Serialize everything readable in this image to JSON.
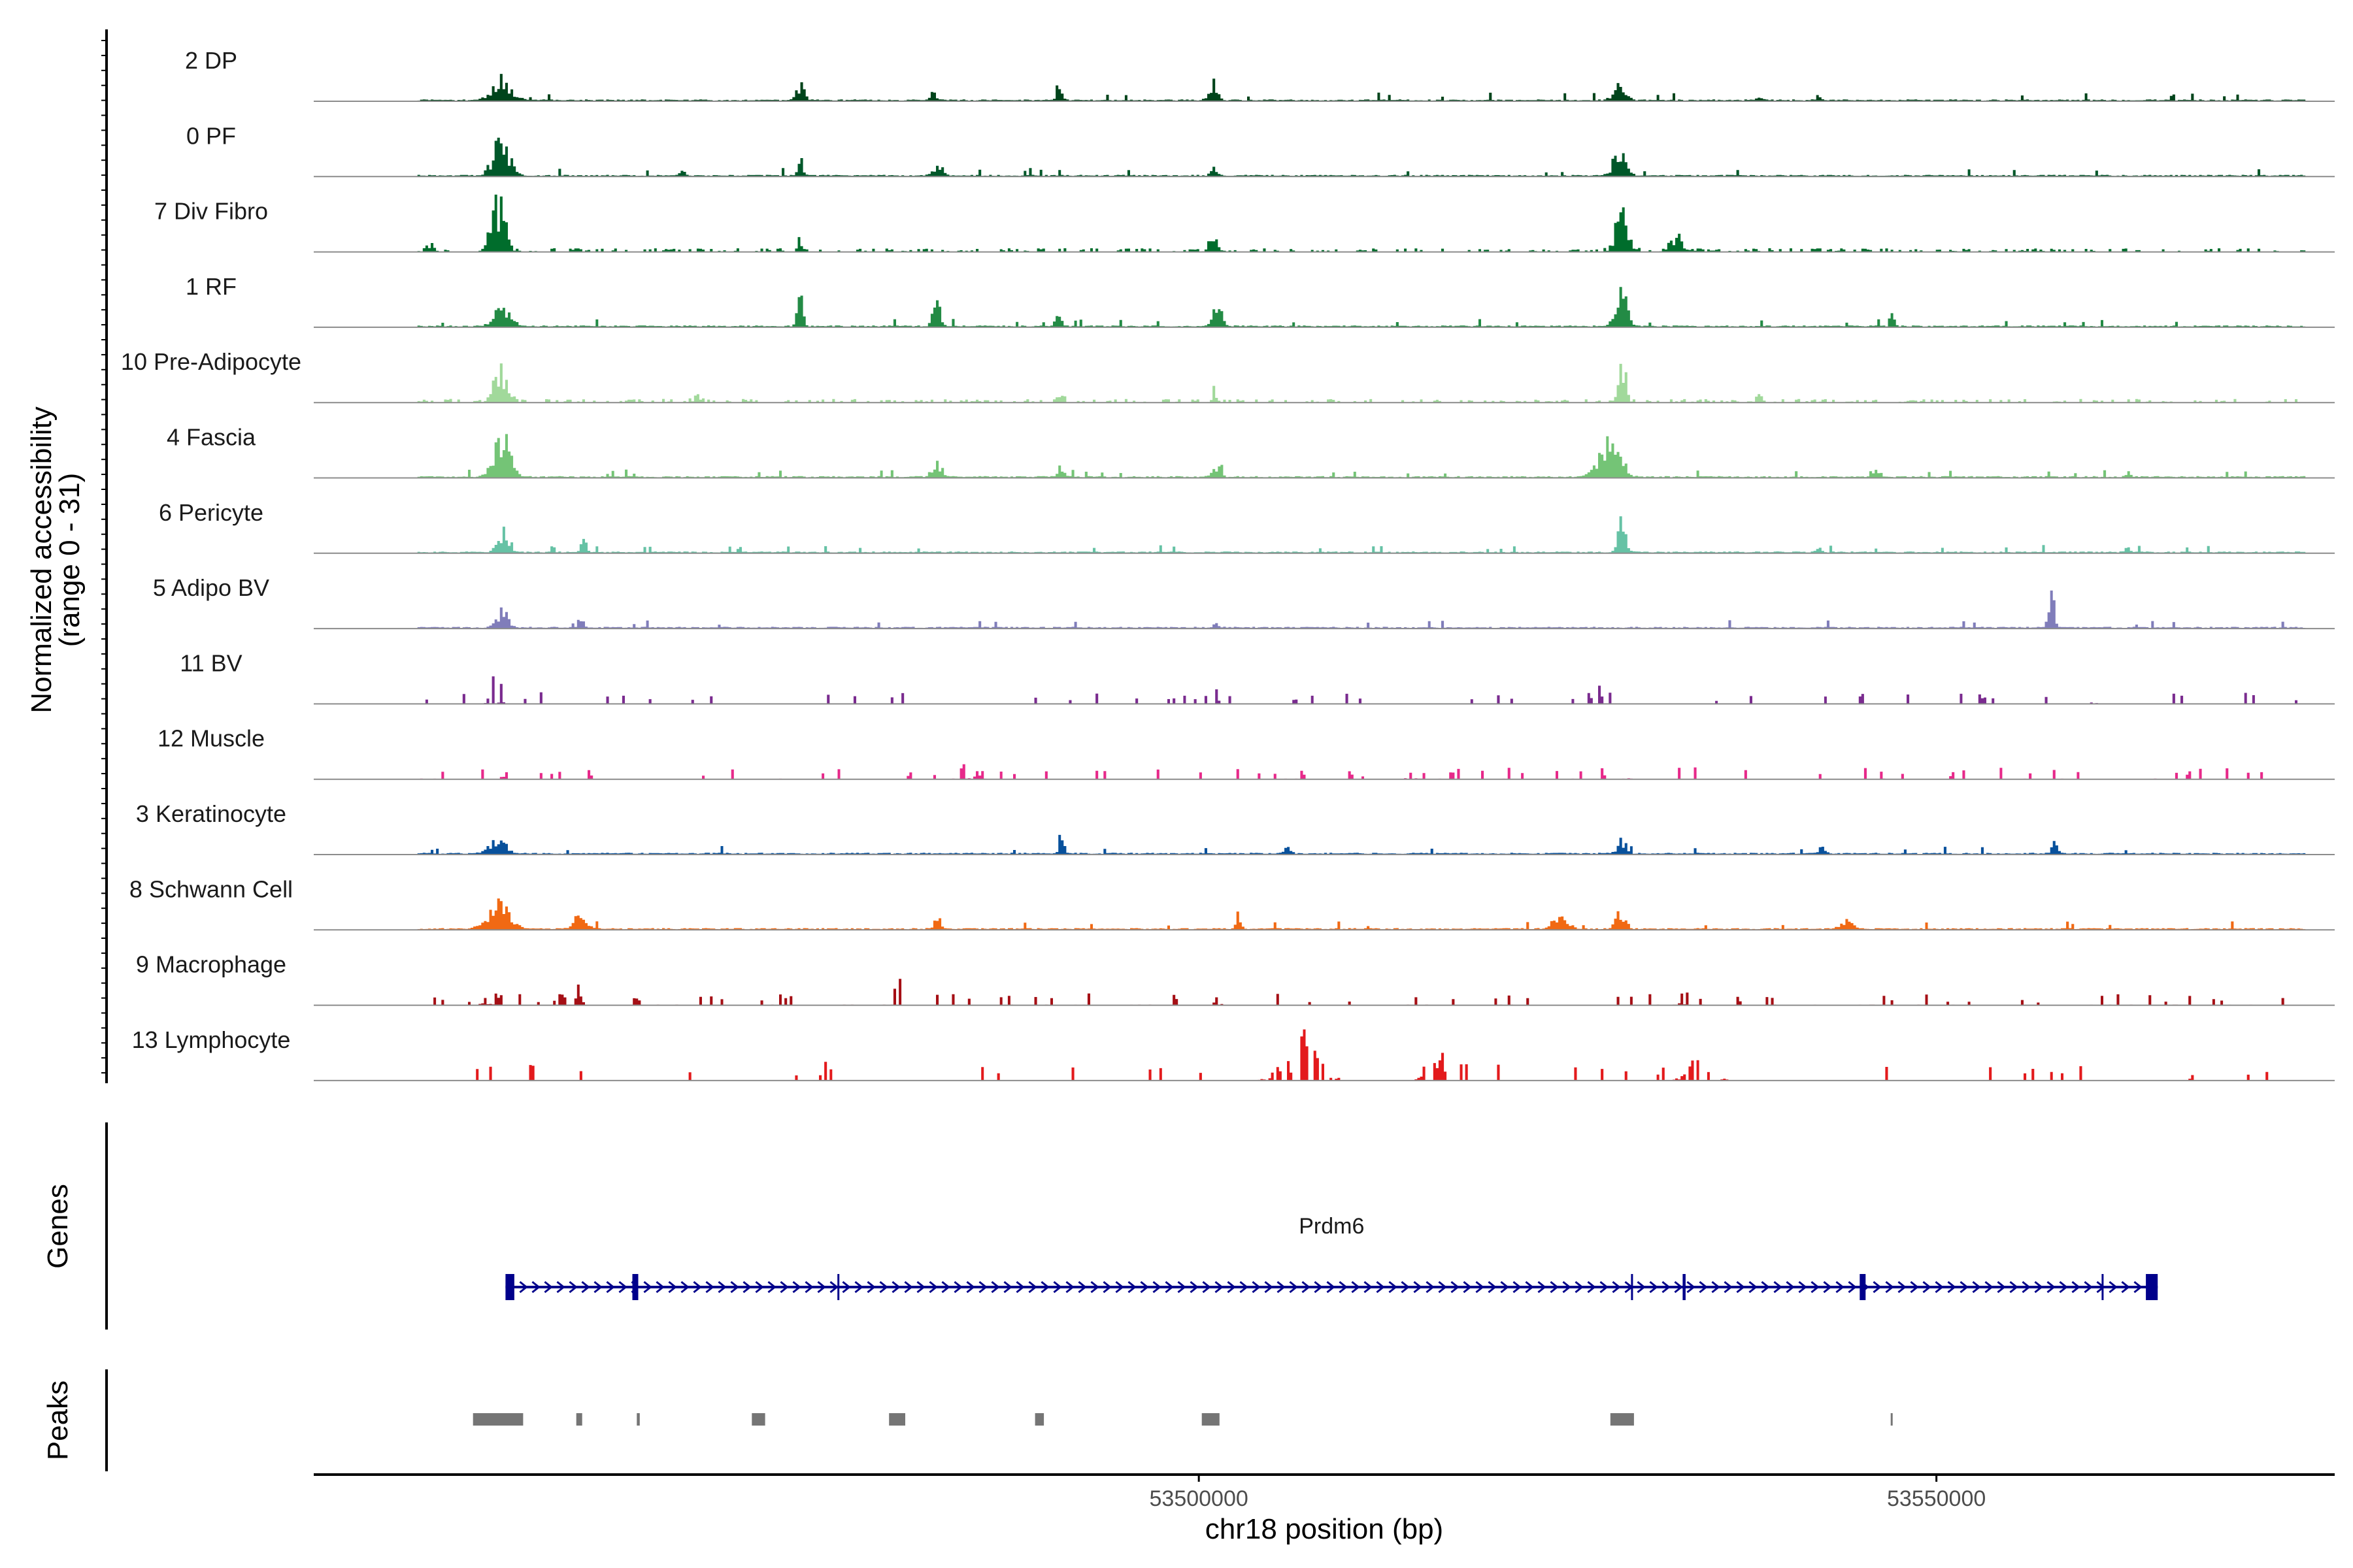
{
  "chart_data": {
    "type": "coverage",
    "chromosome": "chr18",
    "xlim": [
      53440000,
      53577000
    ],
    "coverage": {
      "ylabel": "Normalized accessibility",
      "ylabel_range": "(range 0 - 31)",
      "y_range": [
        0,
        31
      ],
      "tracks": [
        {
          "name": "2 DP",
          "color": "#00441b",
          "style": "dense",
          "seed": 11,
          "peaks": [
            [
              53452800,
              0.4,
              1800
            ],
            [
              53473000,
              0.3,
              700
            ],
            [
              53482000,
              0.14,
              600
            ],
            [
              53490600,
              0.35,
              500
            ],
            [
              53501000,
              0.32,
              800
            ],
            [
              53528500,
              0.28,
              1100
            ],
            [
              53538000,
              0.1,
              500
            ],
            [
              53542000,
              0.1,
              500
            ]
          ]
        },
        {
          "name": "0 PF",
          "color": "#00582a",
          "style": "dense",
          "seed": 23,
          "peaks": [
            [
              53452700,
              0.65,
              1500
            ],
            [
              53473000,
              0.32,
              600
            ],
            [
              53482300,
              0.24,
              800
            ],
            [
              53501000,
              0.22,
              500
            ],
            [
              53528500,
              0.42,
              1200
            ],
            [
              53465000,
              0.12,
              500
            ]
          ]
        },
        {
          "name": "7 Div Fibro",
          "color": "#006d2c",
          "style": "mixed",
          "seed": 37,
          "peaks": [
            [
              53452500,
              0.95,
              1300
            ],
            [
              53473000,
              0.22,
              500
            ],
            [
              53501000,
              0.28,
              900
            ],
            [
              53528700,
              0.72,
              1200
            ],
            [
              53532500,
              0.26,
              1500
            ],
            [
              53448000,
              0.16,
              700
            ]
          ]
        },
        {
          "name": "1 RF",
          "color": "#238b45",
          "style": "dense",
          "seed": 41,
          "peaks": [
            [
              53452800,
              0.4,
              1500
            ],
            [
              53473000,
              0.7,
              500
            ],
            [
              53482200,
              0.65,
              600
            ],
            [
              53490500,
              0.33,
              500
            ],
            [
              53501200,
              0.42,
              900
            ],
            [
              53528600,
              0.78,
              1000
            ],
            [
              53547000,
              0.3,
              400
            ]
          ]
        },
        {
          "name": "10 Pre-Adipocyte",
          "color": "#a1d99b",
          "style": "mixed",
          "seed": 53,
          "peaks": [
            [
              53452700,
              0.65,
              1400
            ],
            [
              53466000,
              0.1,
              700
            ],
            [
              53490600,
              0.22,
              600
            ],
            [
              53501100,
              0.28,
              500
            ],
            [
              53528700,
              1.0,
              700
            ],
            [
              53538000,
              0.18,
              500
            ]
          ]
        },
        {
          "name": "4 Fascia",
          "color": "#74c476",
          "style": "dense",
          "seed": 67,
          "peaks": [
            [
              53452800,
              0.75,
              1500
            ],
            [
              53482200,
              0.3,
              800
            ],
            [
              53490700,
              0.18,
              500
            ],
            [
              53501200,
              0.25,
              700
            ],
            [
              53527800,
              0.8,
              1800
            ],
            [
              53546000,
              0.14,
              600
            ],
            [
              53563000,
              0.1,
              400
            ]
          ]
        },
        {
          "name": "6 Pericyte",
          "color": "#66c2a5",
          "style": "dense",
          "seed": 71,
          "peaks": [
            [
              53452800,
              0.4,
              900
            ],
            [
              53458300,
              0.45,
              400
            ],
            [
              53528700,
              0.65,
              800
            ],
            [
              53542000,
              0.15,
              400
            ],
            [
              53563000,
              0.12,
              500
            ]
          ]
        },
        {
          "name": "5 Adipo BV",
          "color": "#807dba",
          "style": "dense",
          "seed": 83,
          "peaks": [
            [
              53452800,
              0.4,
              1000
            ],
            [
              53458200,
              0.22,
              400
            ],
            [
              53557800,
              0.72,
              500
            ],
            [
              53501200,
              0.08,
              500
            ]
          ]
        },
        {
          "name": "11 BV",
          "color": "#7a2b8f",
          "style": "sparse",
          "seed": 97,
          "peaks": [
            [
              53452300,
              0.6,
              700
            ],
            [
              53501300,
              0.4,
              500
            ],
            [
              53527200,
              0.3,
              600
            ],
            [
              53560800,
              0.35,
              400
            ]
          ]
        },
        {
          "name": "12 Muscle",
          "color": "#e7298a",
          "style": "sparse",
          "seed": 101,
          "peaks": [
            [
              53452800,
              0.7,
              600
            ],
            [
              53484000,
              0.25,
              1500
            ],
            [
              53515000,
              0.3,
              1200
            ],
            [
              53529000,
              0.32,
              1000
            ]
          ]
        },
        {
          "name": "3 Keratinocyte",
          "color": "#08519c",
          "style": "dense",
          "seed": 113,
          "peaks": [
            [
              53452500,
              0.3,
              1400
            ],
            [
              53490700,
              0.42,
              500
            ],
            [
              53506000,
              0.14,
              600
            ],
            [
              53528700,
              0.26,
              800
            ],
            [
              53542300,
              0.16,
              500
            ],
            [
              53558000,
              0.22,
              500
            ]
          ]
        },
        {
          "name": "8 Schwann Cell",
          "color": "#f16913",
          "style": "dense",
          "seed": 127,
          "peaks": [
            [
              53452500,
              0.45,
              2000
            ],
            [
              53458000,
              0.22,
              1200
            ],
            [
              53482300,
              0.2,
              600
            ],
            [
              53502700,
              0.4,
              400
            ],
            [
              53524500,
              0.35,
              1200
            ],
            [
              53528600,
              0.32,
              900
            ],
            [
              53544000,
              0.15,
              1200
            ]
          ]
        },
        {
          "name": "9 Macrophage",
          "color": "#a50f15",
          "style": "sparse",
          "seed": 131,
          "peaks": [
            [
              53452000,
              0.55,
              900
            ],
            [
              53458000,
              0.35,
              500
            ],
            [
              53479500,
              0.45,
              800
            ],
            [
              53501400,
              0.5,
              500
            ],
            [
              53533000,
              0.3,
              700
            ],
            [
              53557000,
              0.2,
              600
            ]
          ]
        },
        {
          "name": "13 Lymphocyte",
          "color": "#e31a1c",
          "style": "spiky",
          "seed": 149,
          "peaks": [
            [
              53473000,
              0.7,
              400
            ],
            [
              53474500,
              0.4,
              600
            ],
            [
              53507000,
              0.8,
              3000
            ],
            [
              53516000,
              0.55,
              1500
            ],
            [
              53534000,
              0.45,
              2000
            ],
            [
              53567500,
              0.4,
              400
            ]
          ]
        }
      ]
    },
    "genes": {
      "ylabel": "Genes",
      "name": "Prdm6",
      "color": "#00008b",
      "strand": "+",
      "start": 53453000,
      "end": 53565000,
      "exons": [
        [
          53453000,
          53453600
        ],
        [
          53461600,
          53462000
        ],
        [
          53475500,
          53475600
        ],
        [
          53529300,
          53529400
        ],
        [
          53532800,
          53533000
        ],
        [
          53544800,
          53545200
        ],
        [
          53561200,
          53561300
        ],
        [
          53564200,
          53565000
        ]
      ]
    },
    "peaks": {
      "ylabel": "Peaks",
      "color": "#757575",
      "regions": [
        [
          53450800,
          53454200
        ],
        [
          53457800,
          53458200
        ],
        [
          53461900,
          53462100
        ],
        [
          53469700,
          53470600
        ],
        [
          53479000,
          53480100
        ],
        [
          53488900,
          53489500
        ],
        [
          53500200,
          53501400
        ],
        [
          53527900,
          53529500
        ],
        [
          53546900,
          53547000
        ]
      ]
    },
    "xaxis": {
      "title": "chr18 position (bp)",
      "ticks": [
        53500000,
        53550000
      ],
      "tick_labels": [
        "53500000",
        "53550000"
      ]
    }
  }
}
